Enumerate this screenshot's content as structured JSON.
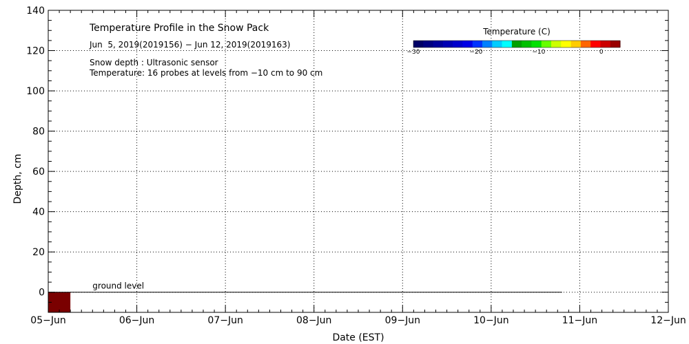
{
  "chart_data": {
    "type": "heatmap",
    "title": "Temperature Profile in the Snow Pack",
    "subtitle": "Jun  5, 2019(2019156) − Jun 12, 2019(2019163)",
    "notes": [
      "Snow depth : Ultrasonic sensor",
      "Temperature: 16 probes at levels from −10 cm to 90 cm"
    ],
    "xlabel": "Date (EST)",
    "ylabel": "Depth, cm",
    "x_ticks": [
      "05−Jun",
      "06−Jun",
      "07−Jun",
      "08−Jun",
      "09−Jun",
      "10−Jun",
      "11−Jun",
      "12−Jun"
    ],
    "y_ticks": [
      0,
      20,
      40,
      60,
      80,
      100,
      120,
      140
    ],
    "xlim_days": [
      0,
      7
    ],
    "ylim": [
      -10,
      140
    ],
    "grid": true,
    "ground_level": {
      "label": "ground level",
      "y": 0,
      "x_end_days": 5.8
    },
    "colorbar": {
      "label": "Temperature (C)",
      "ticks": [
        "−30",
        "−20",
        "−10",
        "0"
      ],
      "tick_values": [
        -30,
        -20,
        -10,
        0
      ],
      "range": [
        -30,
        3
      ],
      "colors": [
        "#000066",
        "#000080",
        "#000099",
        "#0000b3",
        "#0000cc",
        "#0000e6",
        "#0033ff",
        "#0080ff",
        "#00ccff",
        "#00ffff",
        "#00a000",
        "#00c000",
        "#00e000",
        "#66ff00",
        "#ccff00",
        "#ffff00",
        "#ffcc00",
        "#ff6600",
        "#ff0000",
        "#cc0000",
        "#990000"
      ]
    },
    "cells": [
      {
        "x_start_days": 0,
        "x_end_days": 0.25,
        "y_bottom": -10,
        "y_top": 0,
        "temperature": 3,
        "color": "#7a0000"
      }
    ]
  }
}
